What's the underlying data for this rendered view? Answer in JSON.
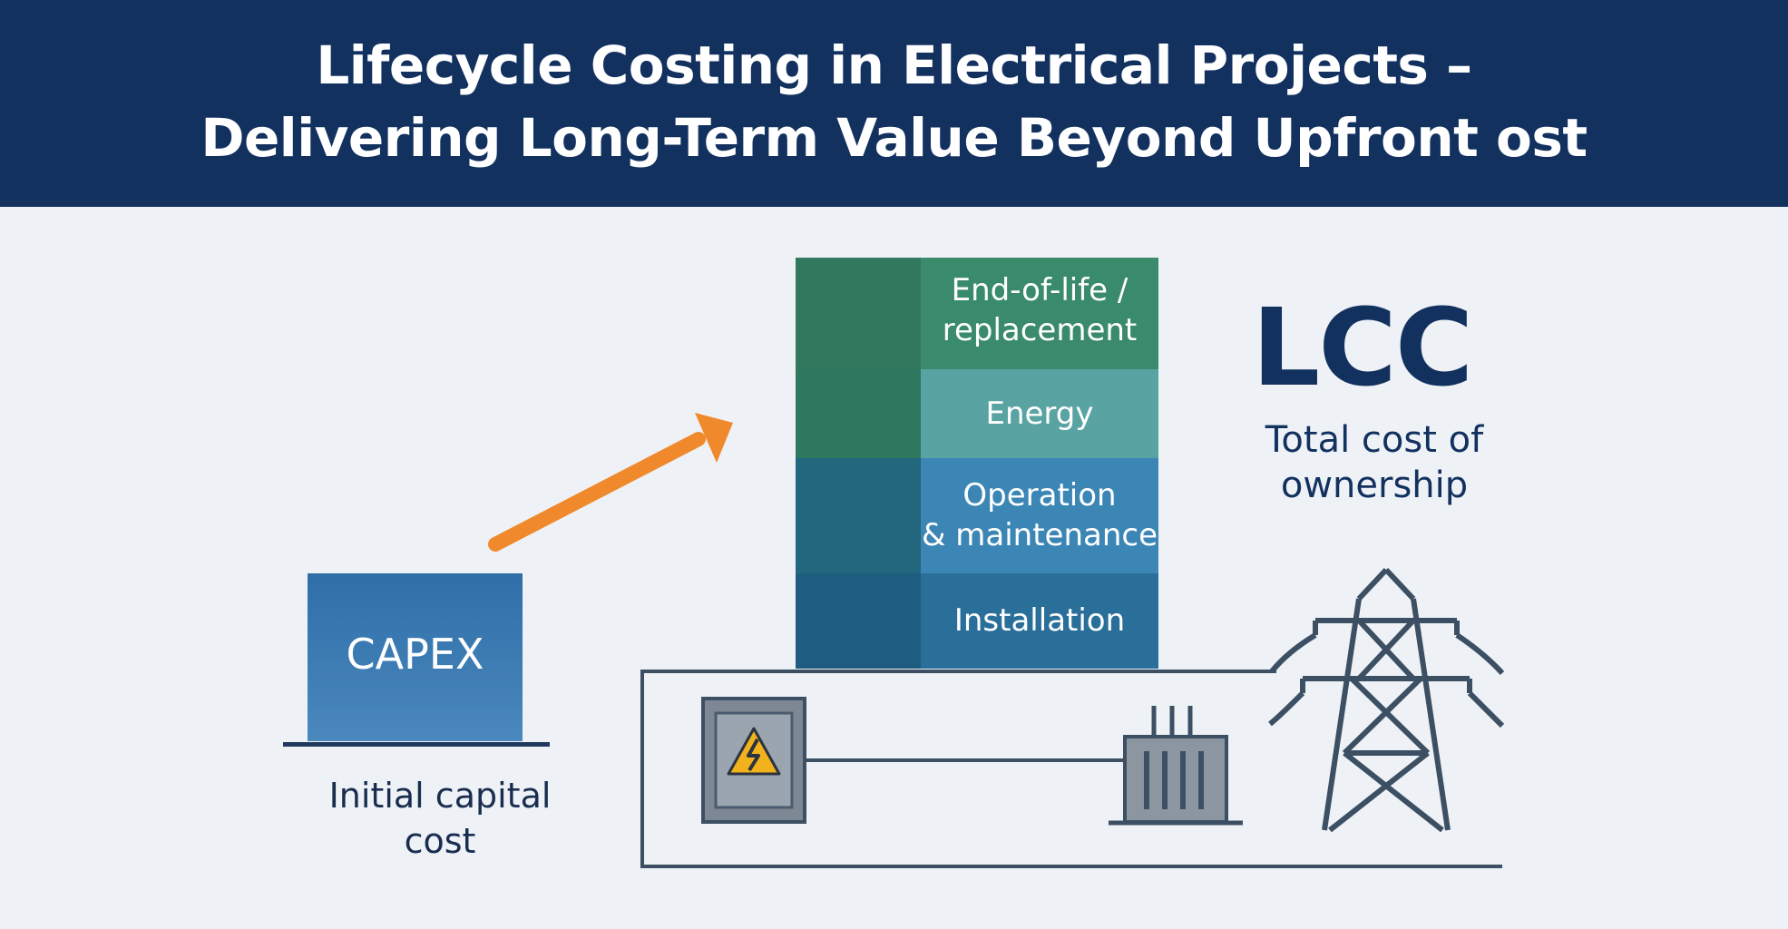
{
  "header": {
    "line1": "Lifecycle Costing in Electrical Projects –",
    "line2": "Delivering Long-Term Value Beyond Upfront ost"
  },
  "capex": {
    "box_label": "CAPEX",
    "caption": "Initial capital\ncost"
  },
  "lcc_stack": {
    "segments": [
      {
        "label": "End-of-life /\nreplacement"
      },
      {
        "label": "Energy"
      },
      {
        "label": "Operation\n& maintenance"
      },
      {
        "label": "Installation"
      }
    ]
  },
  "lcc": {
    "title": "LCC",
    "subtitle": "Total cost of\nownership"
  },
  "icons": {
    "arrow": "arrow-up-right-icon",
    "panel": "electrical-panel-warning-icon",
    "transformer": "transformer-icon",
    "pylon": "transmission-tower-icon"
  },
  "colors": {
    "header_bg": "#12315f",
    "arrow": "#f0892c",
    "end_of_life": "#3a8a6c",
    "energy": "#5aa3a3",
    "operation": "#3b86b5",
    "installation": "#2a6f9a",
    "warning": "#f2b21b"
  }
}
